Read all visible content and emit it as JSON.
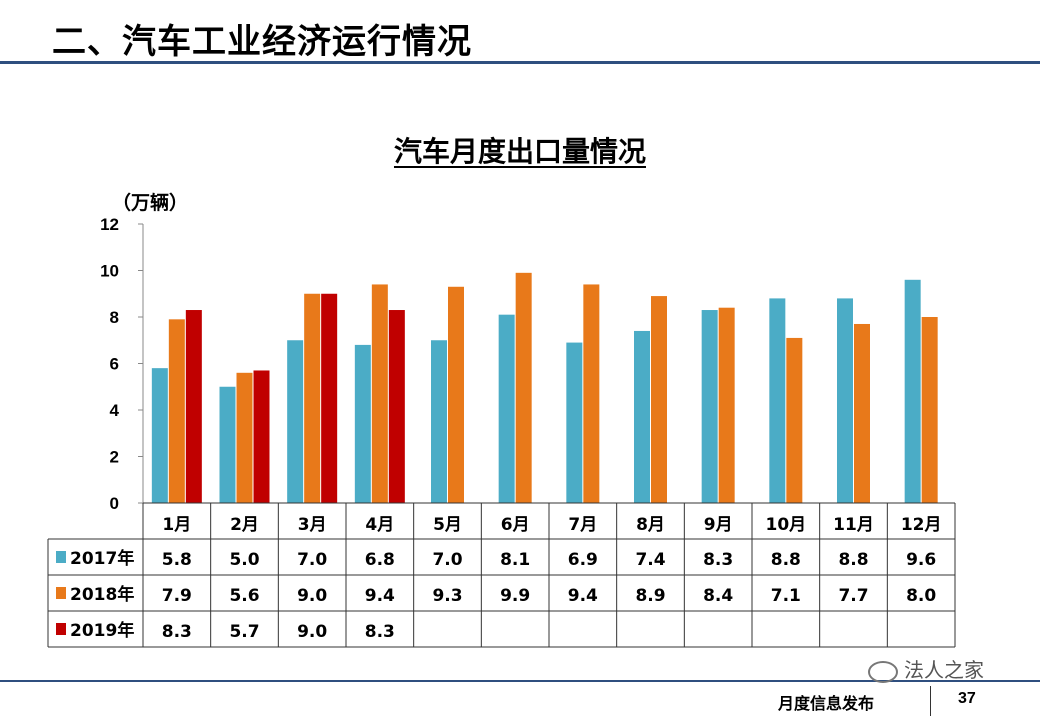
{
  "slide": {
    "title": "二、汽车工业经济运行情况",
    "footer": "月度信息发布",
    "page": "37",
    "watermark": "法人之家"
  },
  "chart_data": {
    "type": "bar",
    "title": "汽车月度出口量情况",
    "ylabel": "（万辆）",
    "ylim": [
      0,
      12
    ],
    "yticks": [
      "0",
      "2",
      "4",
      "6",
      "8",
      "10",
      "12"
    ],
    "grid": false,
    "legend": "data-table",
    "categories": [
      "1月",
      "2月",
      "3月",
      "4月",
      "5月",
      "6月",
      "7月",
      "8月",
      "9月",
      "10月",
      "11月",
      "12月"
    ],
    "series": [
      {
        "name": "2017年",
        "color": "#4bacc6",
        "values": [
          5.8,
          5.0,
          7.0,
          6.8,
          7.0,
          8.1,
          6.9,
          7.4,
          8.3,
          8.8,
          8.8,
          9.6
        ],
        "labels": [
          "5.8",
          "5.0",
          "7.0",
          "6.8",
          "7.0",
          "8.1",
          "6.9",
          "7.4",
          "8.3",
          "8.8",
          "8.8",
          "9.6"
        ]
      },
      {
        "name": "2018年",
        "color": "#e8791a",
        "values": [
          7.9,
          5.6,
          9.0,
          9.4,
          9.3,
          9.9,
          9.4,
          8.9,
          8.4,
          7.1,
          7.7,
          8.0
        ],
        "labels": [
          "7.9",
          "5.6",
          "9.0",
          "9.4",
          "9.3",
          "9.9",
          "9.4",
          "8.9",
          "8.4",
          "7.1",
          "7.7",
          "8.0"
        ]
      },
      {
        "name": "2019年",
        "color": "#c00000",
        "values": [
          8.3,
          5.7,
          9.0,
          8.3,
          null,
          null,
          null,
          null,
          null,
          null,
          null,
          null
        ],
        "labels": [
          "8.3",
          "5.7",
          "9.0",
          "8.3",
          "",
          "",
          "",
          "",
          "",
          "",
          "",
          ""
        ]
      }
    ]
  }
}
